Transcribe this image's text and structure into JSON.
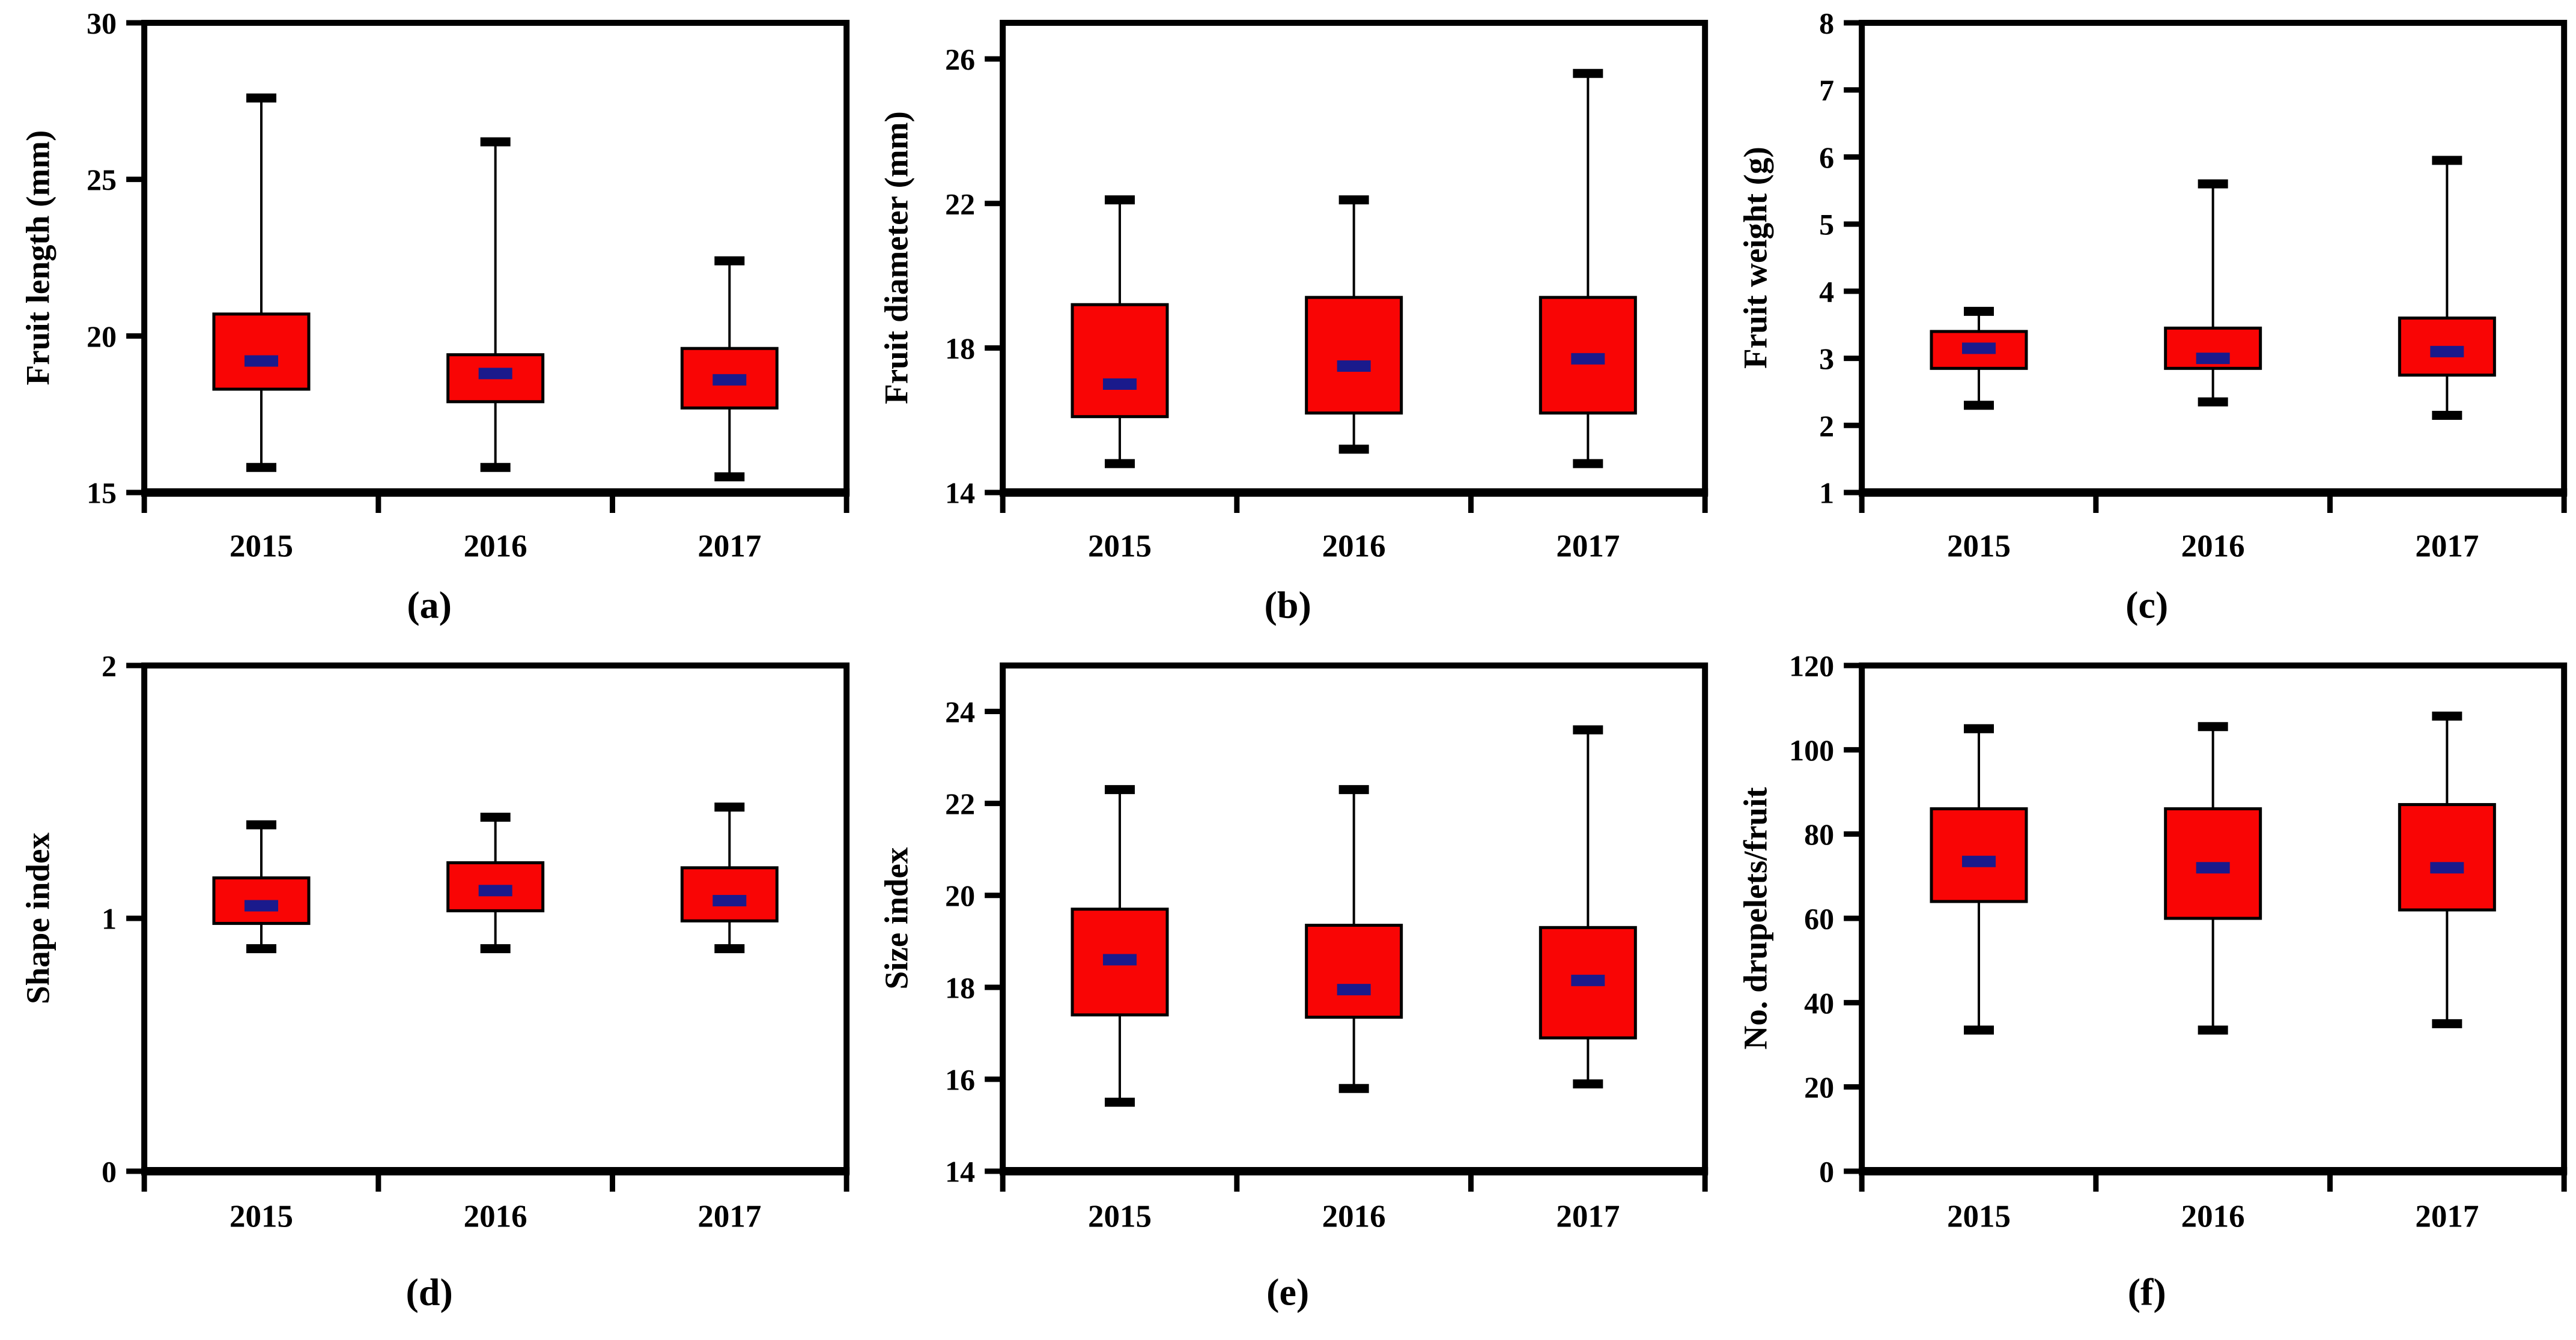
{
  "figure": {
    "background": "#ffffff",
    "box_fill": "#f90505",
    "box_border": "#000000",
    "median_color": "#1a1a8c",
    "whisker_color": "#000000",
    "axis_color": "#000000",
    "text_color": "#000000"
  },
  "chart_data": [
    {
      "type": "boxplot",
      "panel_label": "(a)",
      "ylabel": "Fruit length (mm)",
      "ylim": [
        15,
        30
      ],
      "yticks": [
        15,
        20,
        25,
        30
      ],
      "categories": [
        "2015",
        "2016",
        "2017"
      ],
      "series": [
        {
          "category": "2015",
          "whisker_low": 15.8,
          "q1": 18.3,
          "median": 19.2,
          "q3": 20.7,
          "whisker_high": 27.6
        },
        {
          "category": "2016",
          "whisker_low": 15.8,
          "q1": 17.9,
          "median": 18.8,
          "q3": 19.4,
          "whisker_high": 26.2
        },
        {
          "category": "2017",
          "whisker_low": 15.5,
          "q1": 17.7,
          "median": 18.6,
          "q3": 19.6,
          "whisker_high": 22.4
        }
      ]
    },
    {
      "type": "boxplot",
      "panel_label": "(b)",
      "ylabel": "Fruit diameter (mm)",
      "ylim": [
        14,
        27
      ],
      "yticks": [
        14,
        18,
        22,
        26
      ],
      "categories": [
        "2015",
        "2016",
        "2017"
      ],
      "series": [
        {
          "category": "2015",
          "whisker_low": 14.8,
          "q1": 16.1,
          "median": 17.0,
          "q3": 19.2,
          "whisker_high": 22.1
        },
        {
          "category": "2016",
          "whisker_low": 15.2,
          "q1": 16.2,
          "median": 17.5,
          "q3": 19.4,
          "whisker_high": 22.1
        },
        {
          "category": "2017",
          "whisker_low": 14.8,
          "q1": 16.2,
          "median": 17.7,
          "q3": 19.4,
          "whisker_high": 25.6
        }
      ]
    },
    {
      "type": "boxplot",
      "panel_label": "(c)",
      "ylabel": "Fruit weight (g)",
      "ylim": [
        1,
        8
      ],
      "yticks": [
        1,
        2,
        3,
        4,
        5,
        6,
        7,
        8
      ],
      "categories": [
        "2015",
        "2016",
        "2017"
      ],
      "series": [
        {
          "category": "2015",
          "whisker_low": 2.3,
          "q1": 2.85,
          "median": 3.15,
          "q3": 3.4,
          "whisker_high": 3.7
        },
        {
          "category": "2016",
          "whisker_low": 2.35,
          "q1": 2.85,
          "median": 3.0,
          "q3": 3.45,
          "whisker_high": 5.6
        },
        {
          "category": "2017",
          "whisker_low": 2.15,
          "q1": 2.75,
          "median": 3.1,
          "q3": 3.6,
          "whisker_high": 5.95
        }
      ]
    },
    {
      "type": "boxplot",
      "panel_label": "(d)",
      "ylabel": "Shape index",
      "ylim": [
        0,
        2
      ],
      "yticks": [
        0,
        1,
        2
      ],
      "categories": [
        "2015",
        "2016",
        "2017"
      ],
      "series": [
        {
          "category": "2015",
          "whisker_low": 0.88,
          "q1": 0.98,
          "median": 1.05,
          "q3": 1.16,
          "whisker_high": 1.37
        },
        {
          "category": "2016",
          "whisker_low": 0.88,
          "q1": 1.03,
          "median": 1.11,
          "q3": 1.22,
          "whisker_high": 1.4
        },
        {
          "category": "2017",
          "whisker_low": 0.88,
          "q1": 0.99,
          "median": 1.07,
          "q3": 1.2,
          "whisker_high": 1.44
        }
      ]
    },
    {
      "type": "boxplot",
      "panel_label": "(e)",
      "ylabel": "Size index",
      "ylim": [
        14,
        25
      ],
      "yticks": [
        14,
        16,
        18,
        20,
        22,
        24
      ],
      "categories": [
        "2015",
        "2016",
        "2017"
      ],
      "series": [
        {
          "category": "2015",
          "whisker_low": 15.5,
          "q1": 17.4,
          "median": 18.6,
          "q3": 19.7,
          "whisker_high": 22.3
        },
        {
          "category": "2016",
          "whisker_low": 15.8,
          "q1": 17.35,
          "median": 17.95,
          "q3": 19.35,
          "whisker_high": 22.3
        },
        {
          "category": "2017",
          "whisker_low": 15.9,
          "q1": 16.9,
          "median": 18.15,
          "q3": 19.3,
          "whisker_high": 23.6
        }
      ]
    },
    {
      "type": "boxplot",
      "panel_label": "(f)",
      "ylabel": "No. drupelets/fruit",
      "ylim": [
        0,
        120
      ],
      "yticks": [
        0,
        20,
        40,
        60,
        80,
        100,
        120
      ],
      "categories": [
        "2015",
        "2016",
        "2017"
      ],
      "series": [
        {
          "category": "2015",
          "whisker_low": 33.5,
          "q1": 64,
          "median": 73.5,
          "q3": 86,
          "whisker_high": 105
        },
        {
          "category": "2016",
          "whisker_low": 33.5,
          "q1": 60,
          "median": 72,
          "q3": 86,
          "whisker_high": 105.5
        },
        {
          "category": "2017",
          "whisker_low": 35,
          "q1": 62,
          "median": 72,
          "q3": 87,
          "whisker_high": 108
        }
      ]
    }
  ]
}
